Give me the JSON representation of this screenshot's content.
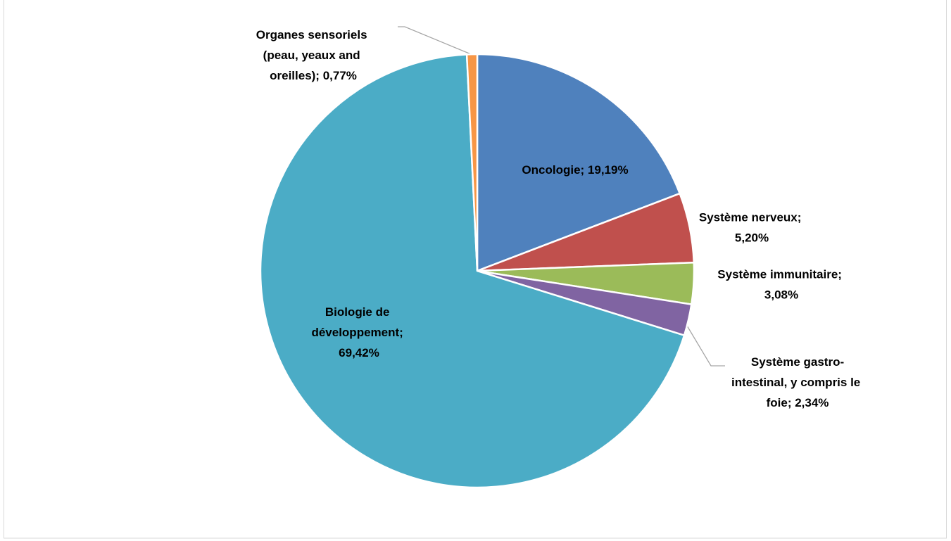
{
  "chart_data": {
    "type": "pie",
    "categories": [
      "Oncologie",
      "Système nerveux",
      "Système immunitaire",
      "Système gastro-intestinal, y compris le foie",
      "Biologie de développement",
      "Organes sensoriels (peau, yeaux and oreilles)"
    ],
    "values": [
      19.19,
      5.2,
      3.08,
      2.34,
      69.42,
      0.77
    ],
    "value_labels": [
      "Oncologie; 19,19%",
      "Système nerveux; 5,20%",
      "Système immunitaire; 3,08%",
      "Système gastro-intestinal, y compris le foie; 2,34%",
      "Biologie de développement; 69,42%",
      "Organes sensoriels (peau, yeaux and oreilles); 0,77%"
    ],
    "colors": [
      "#4f81bd",
      "#c0504d",
      "#9bbb59",
      "#8064a2",
      "#4bacc6",
      "#f79646"
    ]
  }
}
